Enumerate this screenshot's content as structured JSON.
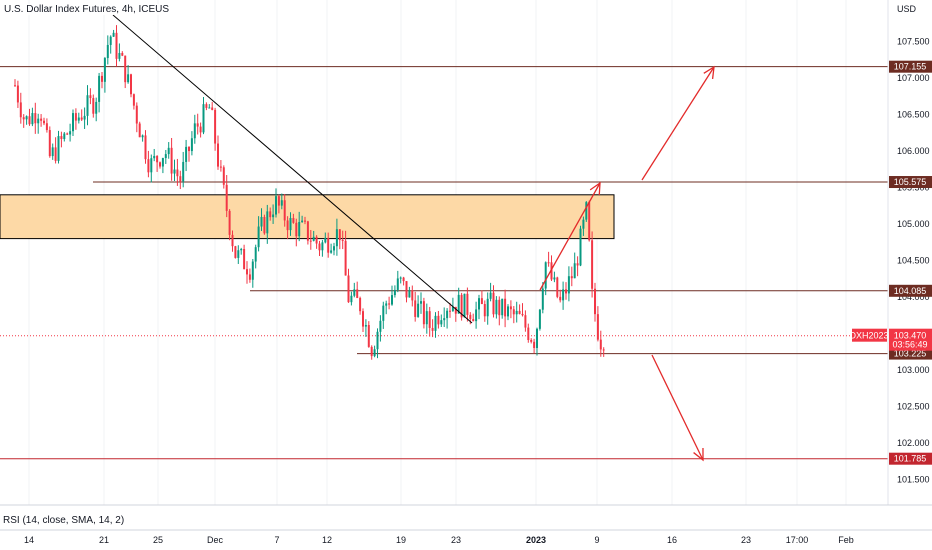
{
  "chart_data": {
    "type": "candlestick",
    "title": "U.S. Dollar Index Futures, 4h, ICEUS",
    "currency": "USD",
    "ylim": [
      101.2,
      108.15
    ],
    "y_ticks": [
      "107.500",
      "107.000",
      "106.500",
      "106.000",
      "105.500",
      "105.000",
      "104.500",
      "104.000",
      "103.000",
      "102.500",
      "102.000",
      "101.500"
    ],
    "x_ticks": [
      "14",
      "21",
      "25",
      "Dec",
      "7",
      "12",
      "19",
      "23",
      "2023",
      "9",
      "16",
      "23",
      "17:00",
      "Feb"
    ],
    "level_lines": [
      {
        "value": "107.155",
        "color": "#6d2c22"
      },
      {
        "value": "105.575",
        "color": "#6d2c22"
      },
      {
        "value": "104.085",
        "color": "#6d2c22"
      },
      {
        "value": "103.225",
        "color": "#6d2c22"
      },
      {
        "value": "101.785",
        "color": "#c2262f"
      }
    ],
    "zone": {
      "from": 104.8,
      "to": 105.4,
      "color": "#fdd9a6"
    },
    "current_price": {
      "symbol": "DXH2023",
      "value": "103.470",
      "countdown": "03:56:49",
      "color": "#f23645"
    },
    "rsi_label": "RSI (14, close, SMA, 14, 2)",
    "colors": {
      "up": "#089981",
      "down": "#f23645",
      "arrow": "#e32b2b",
      "trend": "#000000"
    }
  }
}
